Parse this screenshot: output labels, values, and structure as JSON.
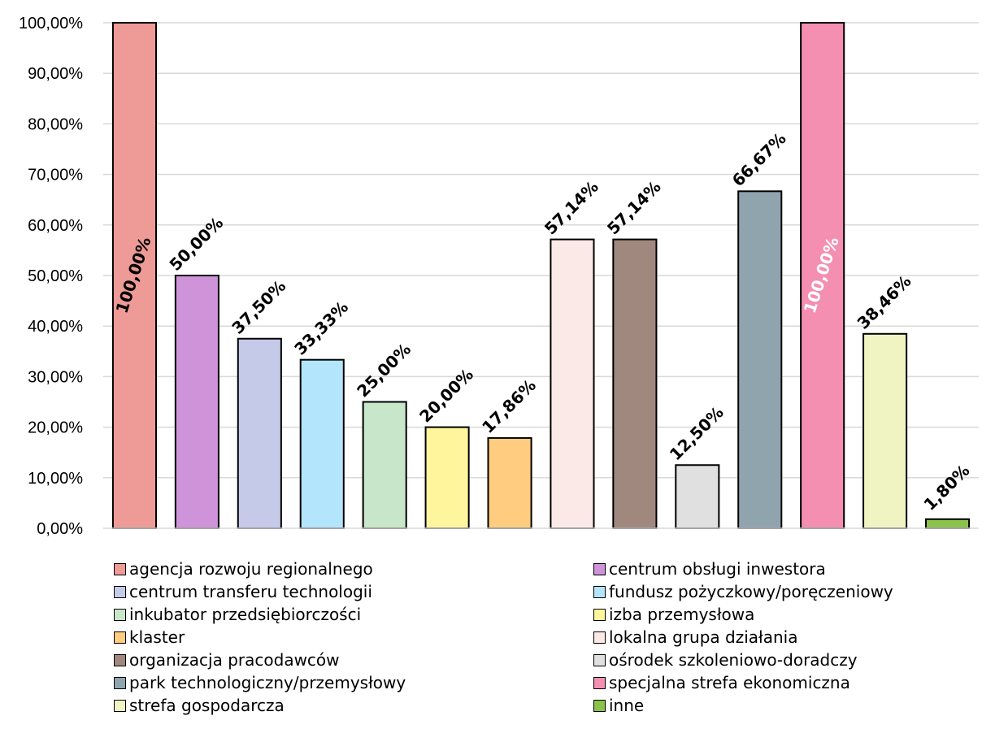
{
  "chart_data": {
    "type": "bar",
    "title": "",
    "xlabel": "",
    "ylabel": "",
    "ylim": [
      0,
      100
    ],
    "y_tick_values": [
      0,
      10,
      20,
      30,
      40,
      50,
      60,
      70,
      80,
      90,
      100
    ],
    "y_tick_labels": [
      "0,00%",
      "10,00%",
      "20,00%",
      "30,00%",
      "40,00%",
      "50,00%",
      "60,00%",
      "70,00%",
      "80,00%",
      "90,00%",
      "100,00%"
    ],
    "grid": true,
    "legend_position": "bottom",
    "categories": [
      "agencja rozwoju regionalnego",
      "centrum obsługi inwestora",
      "centrum transferu technologii",
      "fundusz pożyczkowy/poręczeniowy",
      "inkubator przedsiębiorczości",
      "izba przemysłowa",
      "klaster",
      "lokalna grupa działania",
      "organizacja pracodawców",
      "ośrodek szkoleniowo-doradczy",
      "park technologiczny/przemysłowy",
      "specjalna strefa ekonomiczna",
      "strefa gospodarcza",
      "inne"
    ],
    "values": [
      100,
      50,
      37.5,
      33.33,
      25,
      20,
      17.86,
      57.14,
      57.14,
      12.5,
      66.67,
      100,
      38.46,
      1.8
    ],
    "data_labels": [
      "100,00%",
      "50,00%",
      "37,50%",
      "33,33%",
      "25,00%",
      "20,00%",
      "17,86%",
      "57,14%",
      "57,14%",
      "12,50%",
      "66,67%",
      "100,00%",
      "38,46%",
      "1,80%"
    ],
    "colors": [
      "#EE9A96",
      "#CE93D8",
      "#C5CAE9",
      "#B3E5FC",
      "#C8E6C9",
      "#FFF59D",
      "#FFCC80",
      "#FBE9E7",
      "#A1887F",
      "#E0E0E0",
      "#90A4AE",
      "#F48FB1",
      "#F0F4C3",
      "#8BC34A"
    ],
    "label_colors": [
      "#000000",
      "#000000",
      "#000000",
      "#000000",
      "#000000",
      "#000000",
      "#000000",
      "#000000",
      "#000000",
      "#000000",
      "#000000",
      "#ffffff",
      "#000000",
      "#000000"
    ],
    "legend": [
      {
        "label": "agencja rozwoju regionalnego",
        "color": "#EE9A96"
      },
      {
        "label": "centrum obsługi inwestora",
        "color": "#CE93D8"
      },
      {
        "label": "centrum transferu technologii",
        "color": "#C5CAE9"
      },
      {
        "label": "fundusz pożyczkowy/poręczeniowy",
        "color": "#B3E5FC"
      },
      {
        "label": "inkubator przedsiębiorczości",
        "color": "#C8E6C9"
      },
      {
        "label": "izba przemysłowa",
        "color": "#FFF59D"
      },
      {
        "label": "klaster",
        "color": "#FFCC80"
      },
      {
        "label": "lokalna grupa działania",
        "color": "#FBE9E7"
      },
      {
        "label": "organizacja pracodawców",
        "color": "#A1887F"
      },
      {
        "label": "ośrodek szkoleniowo-doradczy",
        "color": "#E0E0E0"
      },
      {
        "label": "park technologiczny/przemysłowy",
        "color": "#90A4AE"
      },
      {
        "label": "specjalna strefa ekonomiczna",
        "color": "#F48FB1"
      },
      {
        "label": "strefa gospodarcza",
        "color": "#F0F4C3"
      },
      {
        "label": "inne",
        "color": "#8BC34A"
      }
    ]
  }
}
